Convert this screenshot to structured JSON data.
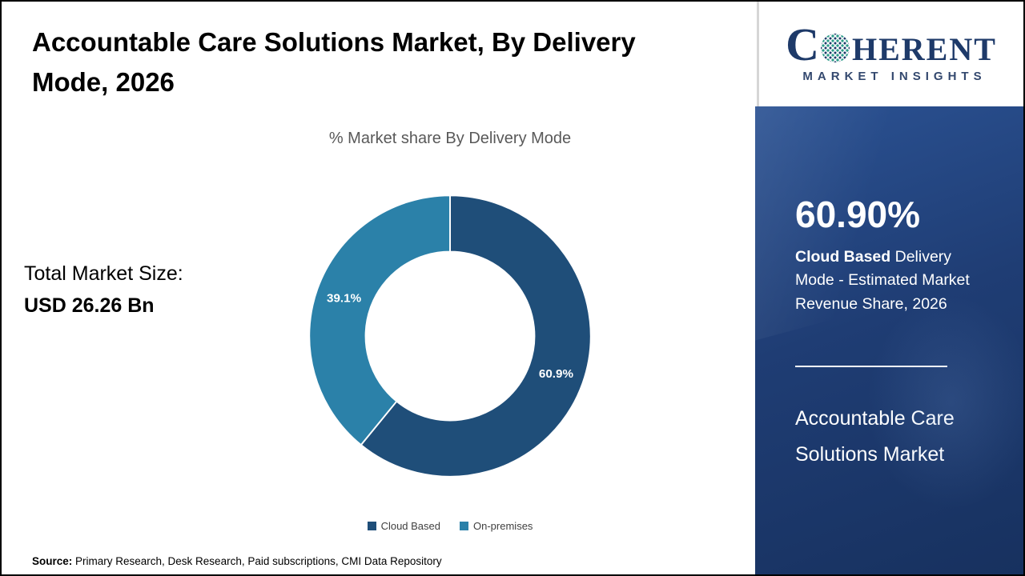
{
  "title": {
    "line1": "Accountable Care Solutions Market, By Delivery",
    "line2": "Mode, 2026",
    "full": "Accountable Care Solutions Market, By Delivery Mode, 2026"
  },
  "chart_data": {
    "type": "pie",
    "donut": true,
    "inner_radius_ratio": 0.6,
    "start": "top-clockwise",
    "title": "% Market share By Delivery Mode",
    "categories": [
      "Cloud Based",
      "On-premises"
    ],
    "values": [
      60.9,
      39.1
    ],
    "data_labels": [
      "60.9%",
      "39.1%"
    ],
    "colors": [
      "#1f4e79",
      "#2b81a9"
    ],
    "legend_position": "bottom"
  },
  "total_market": {
    "label": "Total Market Size:",
    "value": "USD 26.26 Bn"
  },
  "sidebar": {
    "highlight_value": "60.90%",
    "highlight_bold": "Cloud Based",
    "highlight_rest": " Delivery Mode - Estimated Market Revenue Share, 2026",
    "market_name": "Accountable Care Solutions Market",
    "background_color": "#1f3d74"
  },
  "logo": {
    "c": "C",
    "rest": "HERENT",
    "subtitle": "MARKET INSIGHTS",
    "navy": "#1e3a69",
    "globe_teal": "#2e9c8a"
  },
  "source": {
    "label": "Source:",
    "text": " Primary Research, Desk Research, Paid subscriptions, CMI Data Repository"
  }
}
